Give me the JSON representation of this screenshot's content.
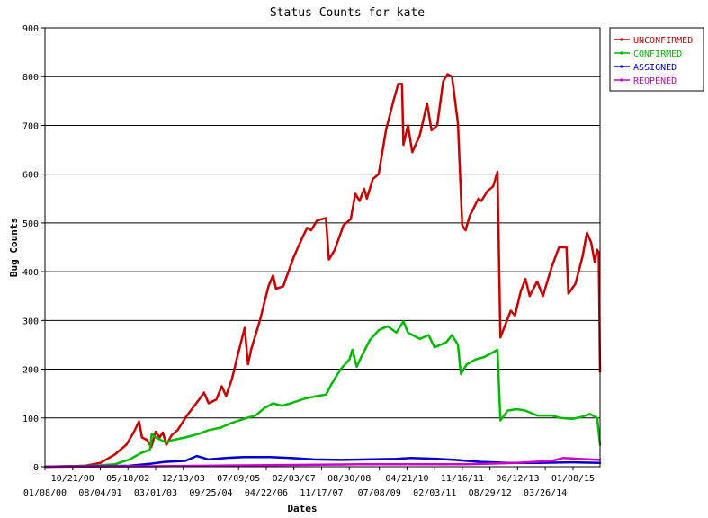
{
  "chart_data": {
    "type": "line",
    "title": "Status Counts for kate",
    "xlabel": "Dates",
    "ylabel": "Bug Counts",
    "ylim": [
      0,
      900
    ],
    "yticks": [
      0,
      100,
      200,
      300,
      400,
      500,
      600,
      700,
      800,
      900
    ],
    "grid": true,
    "legend_position": "top-right",
    "x_tick_rows": [
      [
        "10/21/00",
        "05/18/02",
        "12/13/03",
        "07/09/05",
        "02/03/07",
        "08/30/08",
        "04/21/10",
        "11/16/11",
        "06/12/13",
        "01/08/15"
      ],
      [
        "01/08/00",
        "08/04/01",
        "03/01/03",
        "09/25/04",
        "04/22/06",
        "11/17/07",
        "07/08/09",
        "02/03/11",
        "08/29/12",
        "03/26/14"
      ]
    ],
    "x_tick_dates": [
      "2000-01-08",
      "2000-10-21",
      "2001-08-04",
      "2002-05-18",
      "2003-03-01",
      "2003-12-13",
      "2004-09-25",
      "2005-07-09",
      "2006-04-22",
      "2007-02-03",
      "2007-11-17",
      "2008-08-30",
      "2009-07-08",
      "2010-04-21",
      "2011-02-03",
      "2011-11-16",
      "2012-08-29",
      "2013-06-12",
      "2014-03-26",
      "2015-01-08"
    ],
    "x_range": [
      "2000-01-08",
      "2015-10-15"
    ],
    "series": [
      {
        "name": "UNCONFIRMED",
        "color": "#cc0000",
        "points": [
          [
            "2000-01-08",
            0
          ],
          [
            "2001-03-01",
            2
          ],
          [
            "2001-08-04",
            8
          ],
          [
            "2002-01-01",
            25
          ],
          [
            "2002-05-01",
            45
          ],
          [
            "2002-07-15",
            70
          ],
          [
            "2002-09-10",
            93
          ],
          [
            "2002-10-10",
            60
          ],
          [
            "2002-12-01",
            55
          ],
          [
            "2003-01-15",
            40
          ],
          [
            "2003-03-01",
            72
          ],
          [
            "2003-04-10",
            60
          ],
          [
            "2003-05-15",
            70
          ],
          [
            "2003-06-20",
            45
          ],
          [
            "2003-08-15",
            65
          ],
          [
            "2003-10-15",
            75
          ],
          [
            "2004-01-20",
            105
          ],
          [
            "2004-05-15",
            135
          ],
          [
            "2004-07-15",
            152
          ],
          [
            "2004-09-01",
            130
          ],
          [
            "2004-11-20",
            138
          ],
          [
            "2005-01-15",
            165
          ],
          [
            "2005-03-01",
            145
          ],
          [
            "2005-05-01",
            180
          ],
          [
            "2005-07-01",
            230
          ],
          [
            "2005-09-10",
            285
          ],
          [
            "2005-10-15",
            210
          ],
          [
            "2005-11-15",
            240
          ],
          [
            "2006-02-15",
            300
          ],
          [
            "2006-05-15",
            370
          ],
          [
            "2006-07-01",
            392
          ],
          [
            "2006-08-01",
            365
          ],
          [
            "2006-10-15",
            370
          ],
          [
            "2007-02-01",
            430
          ],
          [
            "2007-05-01",
            470
          ],
          [
            "2007-06-20",
            490
          ],
          [
            "2007-08-01",
            485
          ],
          [
            "2007-10-01",
            505
          ],
          [
            "2008-01-01",
            510
          ],
          [
            "2008-02-01",
            425
          ],
          [
            "2008-04-01",
            445
          ],
          [
            "2008-07-01",
            495
          ],
          [
            "2008-09-15",
            508
          ],
          [
            "2008-11-01",
            560
          ],
          [
            "2008-12-15",
            545
          ],
          [
            "2009-02-01",
            570
          ],
          [
            "2009-03-01",
            550
          ],
          [
            "2009-05-01",
            590
          ],
          [
            "2009-07-01",
            600
          ],
          [
            "2009-09-15",
            690
          ],
          [
            "2009-12-01",
            750
          ],
          [
            "2010-01-20",
            785
          ],
          [
            "2010-03-01",
            785
          ],
          [
            "2010-03-15",
            660
          ],
          [
            "2010-05-01",
            700
          ],
          [
            "2010-06-15",
            645
          ],
          [
            "2010-09-01",
            680
          ],
          [
            "2010-11-15",
            745
          ],
          [
            "2011-01-01",
            690
          ],
          [
            "2011-03-01",
            700
          ],
          [
            "2011-05-01",
            790
          ],
          [
            "2011-06-15",
            805
          ],
          [
            "2011-08-01",
            800
          ],
          [
            "2011-10-01",
            705
          ],
          [
            "2011-11-15",
            495
          ],
          [
            "2011-12-20",
            485
          ],
          [
            "2012-02-01",
            515
          ],
          [
            "2012-05-01",
            550
          ],
          [
            "2012-06-01",
            545
          ],
          [
            "2012-08-01",
            565
          ],
          [
            "2012-10-01",
            575
          ],
          [
            "2012-11-15",
            605
          ],
          [
            "2012-12-15",
            265
          ],
          [
            "2013-04-01",
            320
          ],
          [
            "2013-05-15",
            310
          ],
          [
            "2013-07-15",
            360
          ],
          [
            "2013-09-01",
            385
          ],
          [
            "2013-10-15",
            350
          ],
          [
            "2014-01-01",
            380
          ],
          [
            "2014-03-01",
            350
          ],
          [
            "2014-06-01",
            410
          ],
          [
            "2014-08-15",
            450
          ],
          [
            "2014-11-01",
            450
          ],
          [
            "2014-11-20",
            355
          ],
          [
            "2015-02-01",
            375
          ],
          [
            "2015-04-15",
            430
          ],
          [
            "2015-06-01",
            480
          ],
          [
            "2015-07-15",
            460
          ],
          [
            "2015-08-20",
            420
          ],
          [
            "2015-09-15",
            445
          ],
          [
            "2015-10-01",
            440
          ],
          [
            "2015-10-15",
            195
          ]
        ]
      },
      {
        "name": "CONFIRMED",
        "color": "#00bb00",
        "points": [
          [
            "2000-01-08",
            0
          ],
          [
            "2001-06-01",
            2
          ],
          [
            "2002-01-01",
            5
          ],
          [
            "2002-06-01",
            15
          ],
          [
            "2002-10-01",
            28
          ],
          [
            "2003-01-01",
            35
          ],
          [
            "2003-01-20",
            68
          ],
          [
            "2003-03-01",
            60
          ],
          [
            "2003-06-15",
            50
          ],
          [
            "2003-09-01",
            55
          ],
          [
            "2004-01-01",
            60
          ],
          [
            "2004-06-01",
            68
          ],
          [
            "2004-09-01",
            75
          ],
          [
            "2005-01-01",
            80
          ],
          [
            "2005-05-01",
            90
          ],
          [
            "2005-10-01",
            100
          ],
          [
            "2006-01-01",
            105
          ],
          [
            "2006-04-01",
            120
          ],
          [
            "2006-07-01",
            130
          ],
          [
            "2006-10-01",
            125
          ],
          [
            "2007-01-01",
            130
          ],
          [
            "2007-06-01",
            140
          ],
          [
            "2007-10-01",
            145
          ],
          [
            "2008-01-01",
            148
          ],
          [
            "2008-03-01",
            170
          ],
          [
            "2008-06-01",
            200
          ],
          [
            "2008-09-01",
            220
          ],
          [
            "2008-10-01",
            240
          ],
          [
            "2008-11-15",
            205
          ],
          [
            "2009-01-01",
            225
          ],
          [
            "2009-04-01",
            260
          ],
          [
            "2009-07-01",
            280
          ],
          [
            "2009-10-01",
            288
          ],
          [
            "2010-01-01",
            275
          ],
          [
            "2010-03-15",
            298
          ],
          [
            "2010-05-01",
            275
          ],
          [
            "2010-09-01",
            262
          ],
          [
            "2010-12-01",
            270
          ],
          [
            "2011-02-01",
            245
          ],
          [
            "2011-06-01",
            255
          ],
          [
            "2011-08-01",
            270
          ],
          [
            "2011-10-01",
            250
          ],
          [
            "2011-11-01",
            190
          ],
          [
            "2012-01-01",
            210
          ],
          [
            "2012-04-01",
            220
          ],
          [
            "2012-07-01",
            225
          ],
          [
            "2012-10-01",
            235
          ],
          [
            "2012-11-15",
            240
          ],
          [
            "2012-12-15",
            95
          ],
          [
            "2013-03-01",
            115
          ],
          [
            "2013-06-01",
            118
          ],
          [
            "2013-09-01",
            115
          ],
          [
            "2014-01-01",
            105
          ],
          [
            "2014-06-01",
            105
          ],
          [
            "2014-09-01",
            100
          ],
          [
            "2015-01-01",
            98
          ],
          [
            "2015-04-01",
            102
          ],
          [
            "2015-07-01",
            108
          ],
          [
            "2015-09-15",
            100
          ],
          [
            "2015-10-15",
            45
          ]
        ]
      },
      {
        "name": "ASSIGNED",
        "color": "#0000cc",
        "points": [
          [
            "2000-01-08",
            0
          ],
          [
            "2002-06-01",
            2
          ],
          [
            "2003-01-01",
            6
          ],
          [
            "2003-06-01",
            10
          ],
          [
            "2004-01-01",
            12
          ],
          [
            "2004-05-01",
            22
          ],
          [
            "2004-09-01",
            15
          ],
          [
            "2005-03-01",
            18
          ],
          [
            "2005-09-01",
            20
          ],
          [
            "2006-06-01",
            20
          ],
          [
            "2007-01-01",
            18
          ],
          [
            "2007-09-01",
            15
          ],
          [
            "2008-06-01",
            14
          ],
          [
            "2009-03-01",
            15
          ],
          [
            "2010-01-01",
            16
          ],
          [
            "2010-06-01",
            18
          ],
          [
            "2011-03-01",
            16
          ],
          [
            "2011-09-01",
            14
          ],
          [
            "2012-06-01",
            10
          ],
          [
            "2013-03-01",
            8
          ],
          [
            "2014-01-01",
            8
          ],
          [
            "2015-01-01",
            9
          ],
          [
            "2015-10-15",
            8
          ]
        ]
      },
      {
        "name": "REOPENED",
        "color": "#cc00cc",
        "points": [
          [
            "2000-01-08",
            0
          ],
          [
            "2003-01-01",
            1
          ],
          [
            "2006-01-01",
            3
          ],
          [
            "2009-01-01",
            5
          ],
          [
            "2012-01-01",
            5
          ],
          [
            "2013-06-01",
            8
          ],
          [
            "2014-06-01",
            12
          ],
          [
            "2014-10-01",
            18
          ],
          [
            "2015-03-01",
            16
          ],
          [
            "2015-10-15",
            14
          ]
        ]
      }
    ]
  }
}
